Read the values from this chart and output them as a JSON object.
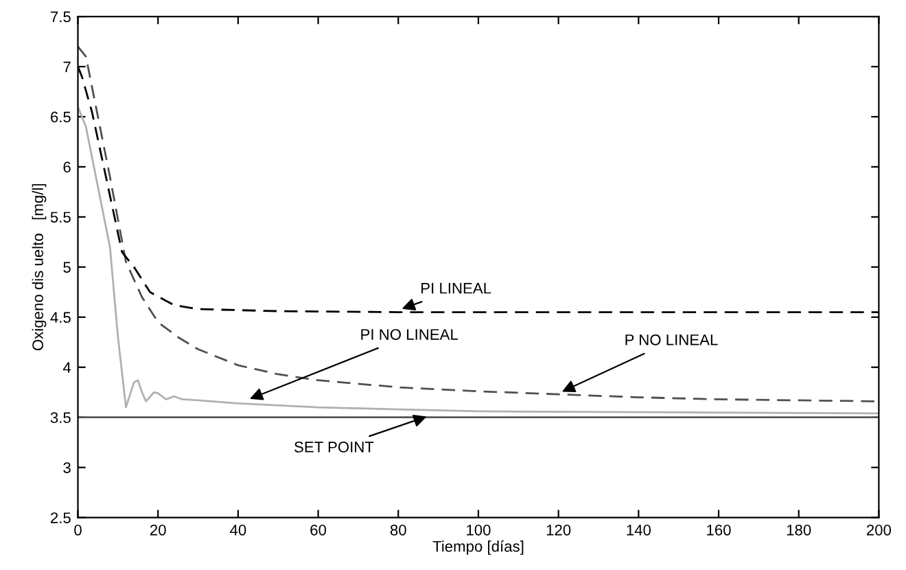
{
  "chart_data": {
    "type": "line",
    "xlabel": "Tiempo [días]",
    "ylabel": "Oxigeno dis uelto   [mg/l]",
    "xlim": [
      0,
      200
    ],
    "ylim": [
      2.5,
      7.5
    ],
    "xticks": [
      0,
      20,
      40,
      60,
      80,
      100,
      120,
      140,
      160,
      180,
      200
    ],
    "yticks": [
      2.5,
      3,
      3.5,
      4,
      4.5,
      5,
      5.5,
      6,
      6.5,
      7,
      7.5
    ],
    "grid": false,
    "marker": "none",
    "series": [
      {
        "color": "#555555",
        "line_style": "solid",
        "x": [
          0,
          200
        ],
        "values": [
          3.5,
          3.5
        ]
      },
      {
        "color": "#b0b0b0",
        "line_style": "solid",
        "x": [
          0,
          2,
          5,
          8,
          10,
          12,
          14,
          15,
          16,
          17,
          19,
          20,
          22,
          24,
          26,
          30,
          40,
          60,
          80,
          100,
          150,
          200
        ],
        "values": [
          6.6,
          6.4,
          5.8,
          5.2,
          4.3,
          3.6,
          3.85,
          3.87,
          3.75,
          3.66,
          3.75,
          3.74,
          3.68,
          3.71,
          3.68,
          3.67,
          3.64,
          3.6,
          3.58,
          3.56,
          3.55,
          3.54
        ]
      },
      {
        "color": "#505050",
        "line_style": "dashed",
        "x": [
          0,
          2,
          5,
          8,
          12,
          16,
          20,
          25,
          30,
          40,
          50,
          60,
          80,
          100,
          120,
          140,
          160,
          180,
          200
        ],
        "values": [
          7.2,
          7.1,
          6.5,
          5.9,
          5.05,
          4.7,
          4.45,
          4.3,
          4.18,
          4.02,
          3.93,
          3.87,
          3.8,
          3.76,
          3.73,
          3.7,
          3.68,
          3.67,
          3.66
        ]
      },
      {
        "color": "#000000",
        "line_style": "dashed",
        "x": [
          0,
          1,
          3.5,
          7,
          11,
          14,
          18,
          24,
          30,
          50,
          80,
          200
        ],
        "values": [
          7.0,
          6.9,
          6.55,
          5.9,
          5.15,
          5.0,
          4.75,
          4.62,
          4.58,
          4.56,
          4.55,
          4.55
        ]
      }
    ],
    "annotations": [
      {
        "text": "PI LINEAL",
        "x": 80,
        "y": 4.57
      },
      {
        "text": "PI NO LINEAL",
        "x": 42,
        "y": 3.67
      },
      {
        "text": "P NO LINEAL",
        "x": 120,
        "y": 3.74
      },
      {
        "text": "SET POINT",
        "x": 88,
        "y": 3.52
      }
    ]
  }
}
